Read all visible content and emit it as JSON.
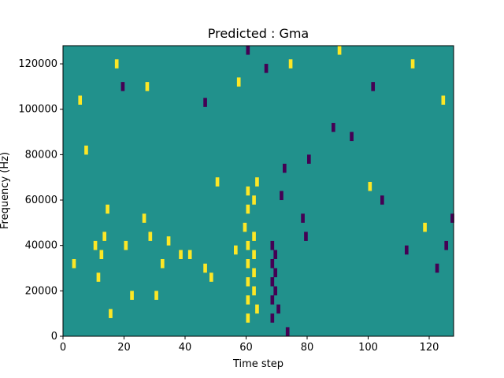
{
  "chart_data": {
    "type": "heatmap",
    "title": "Predicted : Gma",
    "xlabel": "Time step",
    "ylabel": "Frequency (Hz)",
    "xlim": [
      0,
      128
    ],
    "ylim": [
      0,
      128000
    ],
    "x_ticks": [
      0,
      20,
      40,
      60,
      80,
      100,
      120
    ],
    "y_ticks": [
      0,
      20000,
      40000,
      60000,
      80000,
      100000,
      120000
    ],
    "x_tick_labels": [
      "0",
      "20",
      "40",
      "60",
      "80",
      "100",
      "120"
    ],
    "y_tick_labels": [
      "0",
      "20000",
      "40000",
      "60000",
      "80000",
      "100000",
      "120000"
    ],
    "grid": false,
    "colormap": "viridis",
    "value_levels": [
      -1,
      0,
      1
    ],
    "colors": {
      "background": "#21918c",
      "low": "#440154",
      "high": "#fde725"
    },
    "cells": [
      {
        "t": 3,
        "f": 32000,
        "v": 1
      },
      {
        "t": 5,
        "f": 104000,
        "v": 1
      },
      {
        "t": 7,
        "f": 82000,
        "v": 1
      },
      {
        "t": 10,
        "f": 40000,
        "v": 1
      },
      {
        "t": 11,
        "f": 26000,
        "v": 1
      },
      {
        "t": 12,
        "f": 36000,
        "v": 1
      },
      {
        "t": 13,
        "f": 44000,
        "v": 1
      },
      {
        "t": 14,
        "f": 56000,
        "v": 1
      },
      {
        "t": 15,
        "f": 10000,
        "v": 1
      },
      {
        "t": 20,
        "f": 40000,
        "v": 1
      },
      {
        "t": 22,
        "f": 18000,
        "v": 1
      },
      {
        "t": 26,
        "f": 52000,
        "v": 1
      },
      {
        "t": 28,
        "f": 44000,
        "v": 1
      },
      {
        "t": 30,
        "f": 18000,
        "v": 1
      },
      {
        "t": 32,
        "f": 32000,
        "v": 1
      },
      {
        "t": 34,
        "f": 42000,
        "v": 1
      },
      {
        "t": 38,
        "f": 36000,
        "v": 1
      },
      {
        "t": 41,
        "f": 36000,
        "v": 1
      },
      {
        "t": 46,
        "f": 30000,
        "v": 1
      },
      {
        "t": 48,
        "f": 26000,
        "v": 1
      },
      {
        "t": 50,
        "f": 68000,
        "v": 1
      },
      {
        "t": 56,
        "f": 38000,
        "v": 1
      },
      {
        "t": 59,
        "f": 48000,
        "v": 1
      },
      {
        "t": 60,
        "f": 8000,
        "v": 1
      },
      {
        "t": 60,
        "f": 16000,
        "v": 1
      },
      {
        "t": 60,
        "f": 24000,
        "v": 1
      },
      {
        "t": 60,
        "f": 32000,
        "v": 1
      },
      {
        "t": 60,
        "f": 40000,
        "v": 1
      },
      {
        "t": 60,
        "f": 56000,
        "v": 1
      },
      {
        "t": 60,
        "f": 64000,
        "v": 1
      },
      {
        "t": 62,
        "f": 20000,
        "v": 1
      },
      {
        "t": 62,
        "f": 28000,
        "v": 1
      },
      {
        "t": 62,
        "f": 36000,
        "v": 1
      },
      {
        "t": 62,
        "f": 44000,
        "v": 1
      },
      {
        "t": 62,
        "f": 60000,
        "v": 1
      },
      {
        "t": 63,
        "f": 12000,
        "v": 1
      },
      {
        "t": 63,
        "f": 68000,
        "v": 1
      },
      {
        "t": 68,
        "f": 8000,
        "v": -1
      },
      {
        "t": 68,
        "f": 16000,
        "v": -1
      },
      {
        "t": 68,
        "f": 24000,
        "v": -1
      },
      {
        "t": 68,
        "f": 32000,
        "v": -1
      },
      {
        "t": 68,
        "f": 40000,
        "v": -1
      },
      {
        "t": 69,
        "f": 20000,
        "v": -1
      },
      {
        "t": 69,
        "f": 28000,
        "v": -1
      },
      {
        "t": 69,
        "f": 36000,
        "v": -1
      },
      {
        "t": 70,
        "f": 12000,
        "v": -1
      },
      {
        "t": 71,
        "f": 62000,
        "v": -1
      },
      {
        "t": 72,
        "f": 74000,
        "v": -1
      },
      {
        "t": 73,
        "f": 2000,
        "v": -1
      },
      {
        "t": 78,
        "f": 52000,
        "v": -1
      },
      {
        "t": 79,
        "f": 44000,
        "v": -1
      },
      {
        "t": 80,
        "f": 78000,
        "v": -1
      },
      {
        "t": 88,
        "f": 92000,
        "v": -1
      },
      {
        "t": 94,
        "f": 88000,
        "v": -1
      },
      {
        "t": 100,
        "f": 66000,
        "v": 1
      },
      {
        "t": 104,
        "f": 60000,
        "v": -1
      },
      {
        "t": 112,
        "f": 38000,
        "v": -1
      },
      {
        "t": 118,
        "f": 48000,
        "v": 1
      },
      {
        "t": 122,
        "f": 30000,
        "v": -1
      },
      {
        "t": 125,
        "f": 40000,
        "v": -1
      },
      {
        "t": 127,
        "f": 52000,
        "v": -1
      },
      {
        "t": 17,
        "f": 120000,
        "v": 1
      },
      {
        "t": 19,
        "f": 110000,
        "v": -1
      },
      {
        "t": 27,
        "f": 110000,
        "v": 1
      },
      {
        "t": 46,
        "f": 103000,
        "v": -1
      },
      {
        "t": 57,
        "f": 112000,
        "v": 1
      },
      {
        "t": 60,
        "f": 126000,
        "v": -1
      },
      {
        "t": 66,
        "f": 118000,
        "v": -1
      },
      {
        "t": 74,
        "f": 120000,
        "v": 1
      },
      {
        "t": 90,
        "f": 126000,
        "v": 1
      },
      {
        "t": 101,
        "f": 110000,
        "v": -1
      },
      {
        "t": 114,
        "f": 120000,
        "v": 1
      },
      {
        "t": 124,
        "f": 104000,
        "v": 1
      }
    ]
  }
}
